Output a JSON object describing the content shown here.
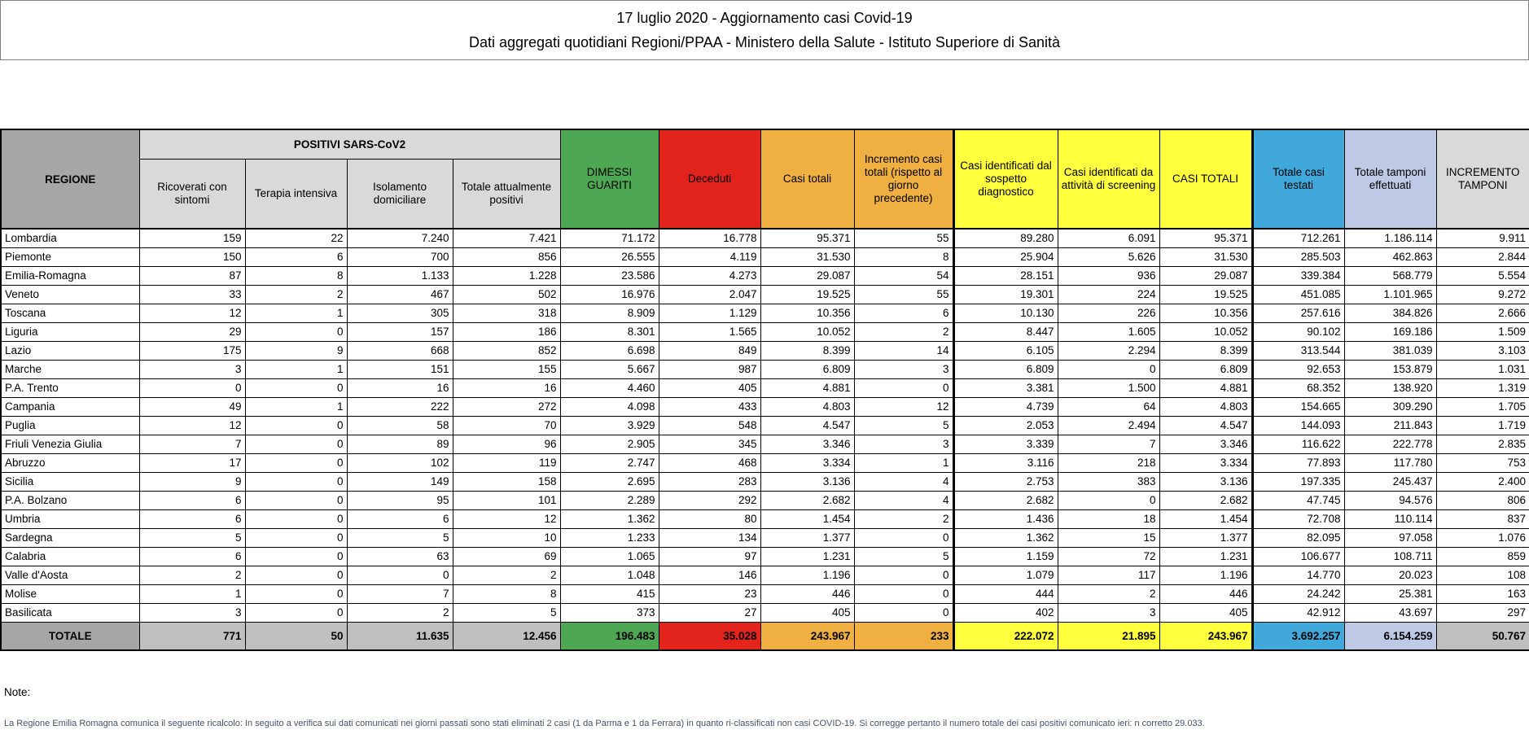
{
  "titles": {
    "line1": "17 luglio 2020 - Aggiornamento casi Covid-19",
    "line2": "Dati aggregati quotidiani Regioni/PPAA - Ministero della Salute - Istituto Superiore di Sanità"
  },
  "table": {
    "region_header": "REGIONE",
    "group_header": "POSITIVI SARS-CoV2",
    "columns": [
      {
        "label": "REGIONE",
        "header_bg": "#A6A6A6",
        "total_bg": "#A6A6A6"
      },
      {
        "label": "Ricoverati con sintomi",
        "header_bg": "#D9D9D9",
        "total_bg": "#BFBFBF"
      },
      {
        "label": "Terapia intensiva",
        "header_bg": "#D9D9D9",
        "total_bg": "#BFBFBF"
      },
      {
        "label": "Isolamento domiciliare",
        "header_bg": "#D9D9D9",
        "total_bg": "#BFBFBF"
      },
      {
        "label": "Totale attualmente positivi",
        "header_bg": "#D9D9D9",
        "total_bg": "#BFBFBF"
      },
      {
        "label": "DIMESSI GUARITI",
        "header_bg": "#4EA752",
        "total_bg": "#4EA752"
      },
      {
        "label": "Deceduti",
        "header_bg": "#E2241D",
        "total_bg": "#E2241D"
      },
      {
        "label": "Casi totali",
        "header_bg": "#EFAF41",
        "total_bg": "#EFAF41"
      },
      {
        "label": "Incremento casi totali (rispetto al giorno precedente)",
        "header_bg": "#EFAF41",
        "total_bg": "#EFAF41",
        "thick_right": true
      },
      {
        "label": "Casi identificati dal sospetto diagnostico",
        "header_bg": "#FFFF3D",
        "total_bg": "#FFFF3D"
      },
      {
        "label": "Casi identificati da attività di screening",
        "header_bg": "#FFFF3D",
        "total_bg": "#FFFF3D"
      },
      {
        "label": "CASI TOTALI",
        "header_bg": "#FFFF3D",
        "total_bg": "#FFFF3D",
        "thick_right": true
      },
      {
        "label": "Totale casi testati",
        "header_bg": "#41A8DC",
        "total_bg": "#41A8DC"
      },
      {
        "label": "Totale tamponi effettuati",
        "header_bg": "#BDC9E5",
        "total_bg": "#BDC9E5"
      },
      {
        "label": "INCREMENTO TAMPONI",
        "header_bg": "#D9D9D9",
        "total_bg": "#BFBFBF"
      }
    ],
    "rows": [
      [
        "Lombardia",
        "159",
        "22",
        "7.240",
        "7.421",
        "71.172",
        "16.778",
        "95.371",
        "55",
        "89.280",
        "6.091",
        "95.371",
        "712.261",
        "1.186.114",
        "9.911"
      ],
      [
        "Piemonte",
        "150",
        "6",
        "700",
        "856",
        "26.555",
        "4.119",
        "31.530",
        "8",
        "25.904",
        "5.626",
        "31.530",
        "285.503",
        "462.863",
        "2.844"
      ],
      [
        "Emilia-Romagna",
        "87",
        "8",
        "1.133",
        "1.228",
        "23.586",
        "4.273",
        "29.087",
        "54",
        "28.151",
        "936",
        "29.087",
        "339.384",
        "568.779",
        "5.554"
      ],
      [
        "Veneto",
        "33",
        "2",
        "467",
        "502",
        "16.976",
        "2.047",
        "19.525",
        "55",
        "19.301",
        "224",
        "19.525",
        "451.085",
        "1.101.965",
        "9.272"
      ],
      [
        "Toscana",
        "12",
        "1",
        "305",
        "318",
        "8.909",
        "1.129",
        "10.356",
        "6",
        "10.130",
        "226",
        "10.356",
        "257.616",
        "384.826",
        "2.666"
      ],
      [
        "Liguria",
        "29",
        "0",
        "157",
        "186",
        "8.301",
        "1.565",
        "10.052",
        "2",
        "8.447",
        "1.605",
        "10.052",
        "90.102",
        "169.186",
        "1.509"
      ],
      [
        "Lazio",
        "175",
        "9",
        "668",
        "852",
        "6.698",
        "849",
        "8.399",
        "14",
        "6.105",
        "2.294",
        "8.399",
        "313.544",
        "381.039",
        "3.103"
      ],
      [
        "Marche",
        "3",
        "1",
        "151",
        "155",
        "5.667",
        "987",
        "6.809",
        "3",
        "6.809",
        "0",
        "6.809",
        "92.653",
        "153.879",
        "1.031"
      ],
      [
        "P.A. Trento",
        "0",
        "0",
        "16",
        "16",
        "4.460",
        "405",
        "4.881",
        "0",
        "3.381",
        "1.500",
        "4.881",
        "68.352",
        "138.920",
        "1.319"
      ],
      [
        "Campania",
        "49",
        "1",
        "222",
        "272",
        "4.098",
        "433",
        "4.803",
        "12",
        "4.739",
        "64",
        "4.803",
        "154.665",
        "309.290",
        "1.705"
      ],
      [
        "Puglia",
        "12",
        "0",
        "58",
        "70",
        "3.929",
        "548",
        "4.547",
        "5",
        "2.053",
        "2.494",
        "4.547",
        "144.093",
        "211.843",
        "1.719"
      ],
      [
        "Friuli Venezia Giulia",
        "7",
        "0",
        "89",
        "96",
        "2.905",
        "345",
        "3.346",
        "3",
        "3.339",
        "7",
        "3.346",
        "116.622",
        "222.778",
        "2.835"
      ],
      [
        "Abruzzo",
        "17",
        "0",
        "102",
        "119",
        "2.747",
        "468",
        "3.334",
        "1",
        "3.116",
        "218",
        "3.334",
        "77.893",
        "117.780",
        "753"
      ],
      [
        "Sicilia",
        "9",
        "0",
        "149",
        "158",
        "2.695",
        "283",
        "3.136",
        "4",
        "2.753",
        "383",
        "3.136",
        "197.335",
        "245.437",
        "2.400"
      ],
      [
        "P.A. Bolzano",
        "6",
        "0",
        "95",
        "101",
        "2.289",
        "292",
        "2.682",
        "4",
        "2.682",
        "0",
        "2.682",
        "47.745",
        "94.576",
        "806"
      ],
      [
        "Umbria",
        "6",
        "0",
        "6",
        "12",
        "1.362",
        "80",
        "1.454",
        "2",
        "1.436",
        "18",
        "1.454",
        "72.708",
        "110.114",
        "837"
      ],
      [
        "Sardegna",
        "5",
        "0",
        "5",
        "10",
        "1.233",
        "134",
        "1.377",
        "0",
        "1.362",
        "15",
        "1.377",
        "82.095",
        "97.058",
        "1.076"
      ],
      [
        "Calabria",
        "6",
        "0",
        "63",
        "69",
        "1.065",
        "97",
        "1.231",
        "5",
        "1.159",
        "72",
        "1.231",
        "106.677",
        "108.711",
        "859"
      ],
      [
        "Valle d'Aosta",
        "2",
        "0",
        "0",
        "2",
        "1.048",
        "146",
        "1.196",
        "0",
        "1.079",
        "117",
        "1.196",
        "14.770",
        "20.023",
        "108"
      ],
      [
        "Molise",
        "1",
        "0",
        "7",
        "8",
        "415",
        "23",
        "446",
        "0",
        "444",
        "2",
        "446",
        "24.242",
        "25.381",
        "163"
      ],
      [
        "Basilicata",
        "3",
        "0",
        "2",
        "5",
        "373",
        "27",
        "405",
        "0",
        "402",
        "3",
        "405",
        "42.912",
        "43.697",
        "297"
      ]
    ],
    "total_row": [
      "TOTALE",
      "771",
      "50",
      "11.635",
      "12.456",
      "196.483",
      "35.028",
      "243.967",
      "233",
      "222.072",
      "21.895",
      "243.967",
      "3.692.257",
      "6.154.259",
      "50.767"
    ]
  },
  "notes": {
    "label": "Note:",
    "body": "La Regione Emilia Romagna comunica il seguente ricalcolo: In seguito a verifica sui dati comunicati nei giorni passati sono stati eliminati 2 casi (1 da Parma e 1 da Ferrara) in quanto ri-classificati non casi COVID-19. Si corregge pertanto il numero totale dei casi positivi comunicato ieri: n corretto 29.033."
  },
  "colors": {
    "recovered_green": "#4EA752",
    "deceased_red": "#E2241D",
    "total_cases_orange": "#EFAF41",
    "identified_yellow": "#FFFF3D",
    "tested_blue": "#41A8DC",
    "swabs_lavender": "#BDC9E5",
    "header_gray": "#A6A6A6",
    "subheader_gray": "#D9D9D9",
    "total_row_gray": "#BFBFBF"
  }
}
